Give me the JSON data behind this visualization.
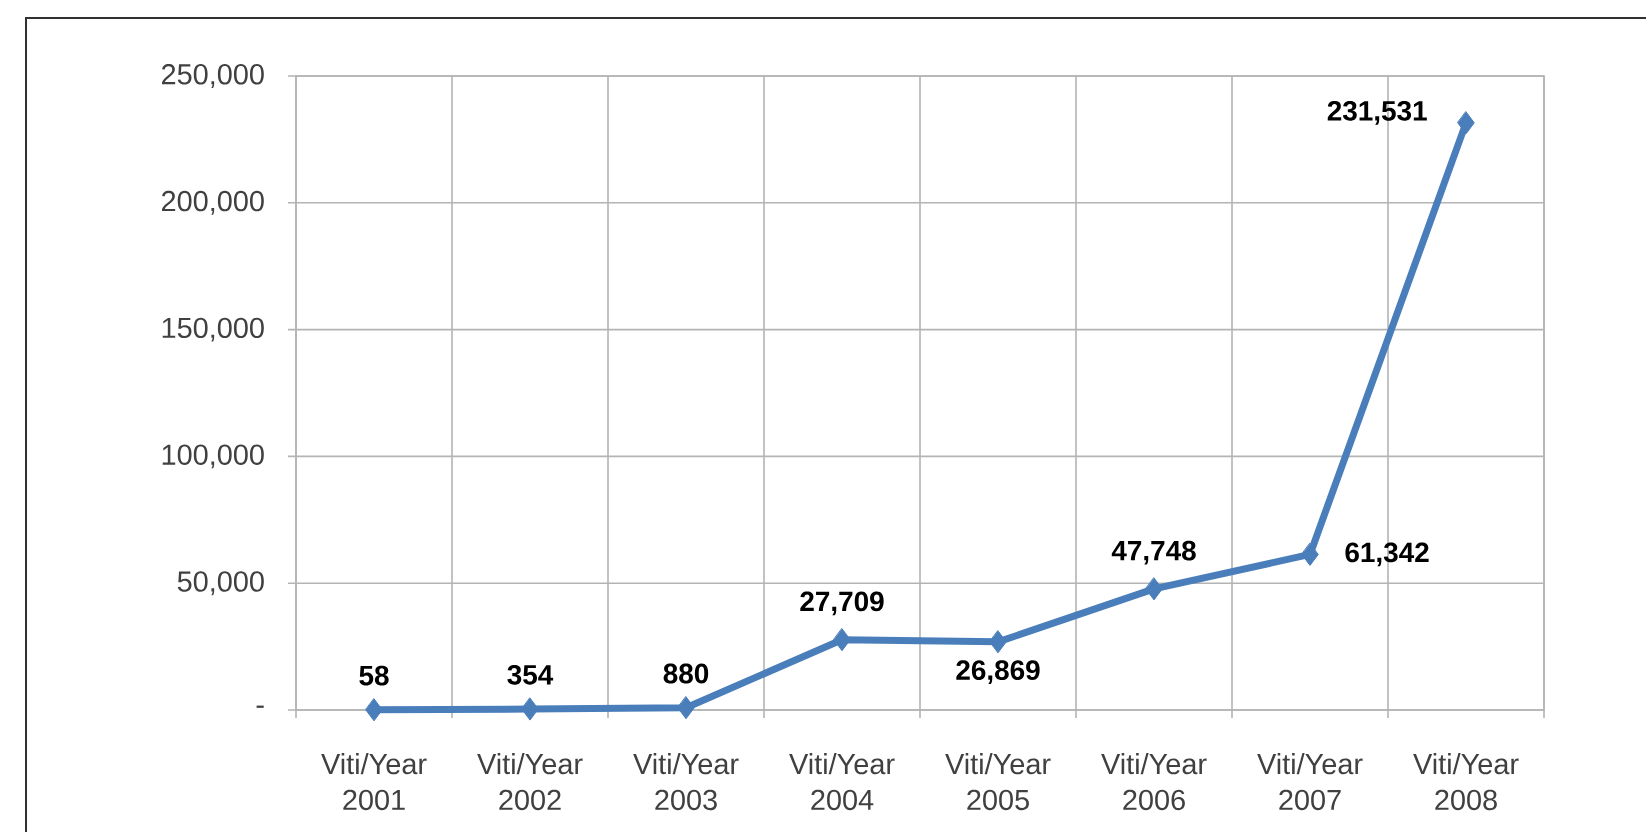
{
  "chart_data": {
    "type": "line",
    "categories": [
      "Viti/Year 2001",
      "Viti/Year 2002",
      "Viti/Year 2003",
      "Viti/Year 2004",
      "Viti/Year 2005",
      "Viti/Year 2006",
      "Viti/Year 2007",
      "Viti/Year 2008"
    ],
    "series": [
      {
        "color": "#4a7ebb",
        "values": [
          58,
          354,
          880,
          27709,
          26869,
          47748,
          61342,
          231531
        ],
        "value_labels": [
          "58",
          "354",
          "880",
          "27,709",
          "26,869",
          "47,748",
          "61,342",
          "231,531"
        ]
      }
    ],
    "ylim": [
      0,
      250000
    ],
    "yticks": [
      {
        "value": 0,
        "label": "-"
      },
      {
        "value": 50000,
        "label": "50,000"
      },
      {
        "value": 100000,
        "label": "100,000"
      },
      {
        "value": 150000,
        "label": "150,000"
      },
      {
        "value": 200000,
        "label": "200,000"
      },
      {
        "value": 250000,
        "label": "250,000"
      }
    ],
    "grid": true,
    "marker": "diamond",
    "line_style": "solid"
  }
}
